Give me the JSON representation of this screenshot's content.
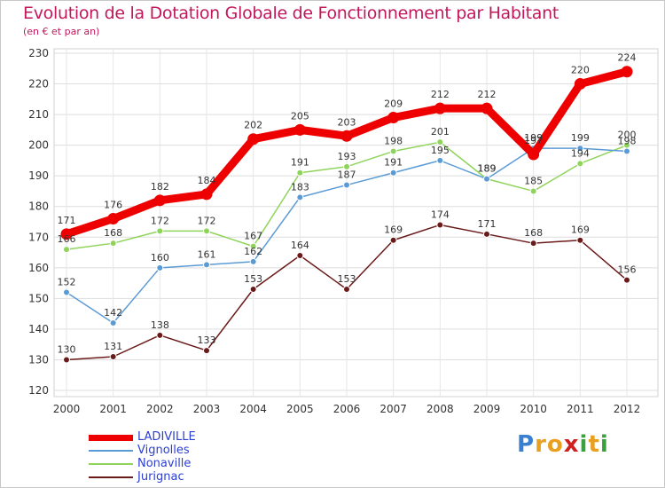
{
  "chart_data": {
    "type": "line",
    "title": "Evolution de la Dotation Globale de Fonctionnement par Habitant",
    "subtitle": "(en € et par an)",
    "x": [
      "2000",
      "2001",
      "2002",
      "2003",
      "2004",
      "2005",
      "2006",
      "2007",
      "2008",
      "2009",
      "2010",
      "2011",
      "2012"
    ],
    "ylim": [
      120,
      230
    ],
    "yticks": [
      120,
      130,
      140,
      150,
      160,
      170,
      180,
      190,
      200,
      210,
      220,
      230
    ],
    "grid": true,
    "series": [
      {
        "name": "Jurignac",
        "color": "#6b1a1a",
        "values": [
          130,
          131,
          138,
          133,
          153,
          164,
          153,
          169,
          174,
          171,
          168,
          169,
          156
        ]
      },
      {
        "name": "Nonaville",
        "color": "#8fd45a",
        "values": [
          166,
          168,
          172,
          172,
          167,
          191,
          193,
          198,
          201,
          189,
          185,
          194,
          200
        ]
      },
      {
        "name": "Vignolles",
        "color": "#5b9bd5",
        "values": [
          152,
          142,
          160,
          161,
          162,
          183,
          187,
          191,
          195,
          189,
          199,
          199,
          198
        ]
      },
      {
        "name": "LADIVILLE",
        "color": "#ee0000",
        "values": [
          171,
          176,
          182,
          184,
          202,
          205,
          203,
          209,
          212,
          212,
          197,
          220,
          224
        ]
      }
    ],
    "legend": [
      "LADIVILLE",
      "Vignolles",
      "Nonaville",
      "Jurignac"
    ]
  },
  "logo": {
    "letters": [
      "P",
      "r",
      "o",
      "x",
      "i",
      "t",
      "i"
    ]
  }
}
